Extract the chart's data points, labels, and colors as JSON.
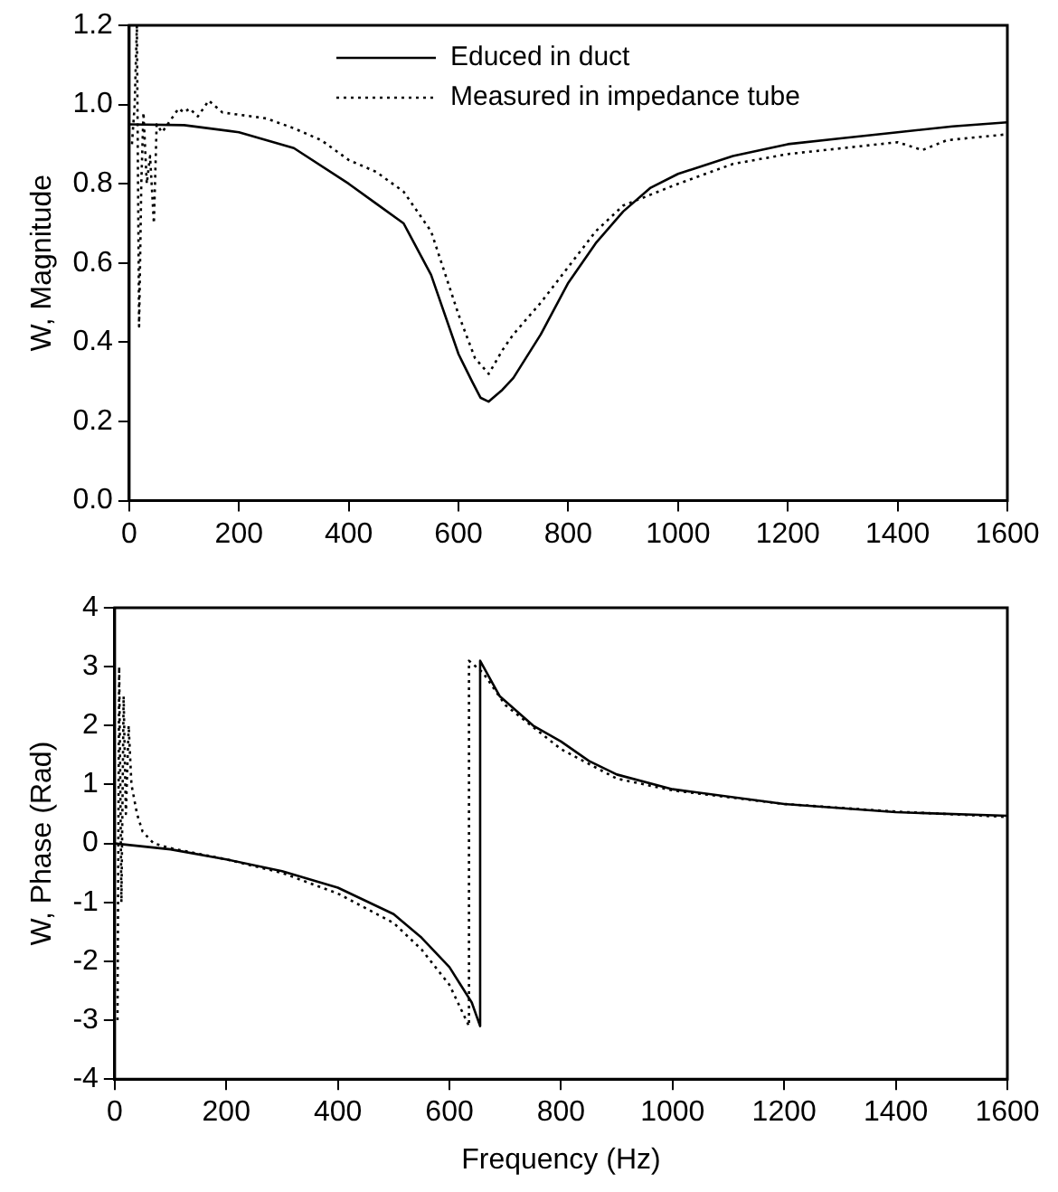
{
  "chart_data": [
    {
      "type": "line",
      "ylabel": "W, Magnitude",
      "legend": "top",
      "grid": false,
      "marker": "none",
      "xlim": [
        0,
        1600
      ],
      "xticks": [
        0,
        200,
        400,
        600,
        800,
        1000,
        1200,
        1400,
        1600
      ],
      "ylim": [
        0,
        1.2
      ],
      "yticks": [
        {
          "value": 0,
          "label": "0.0"
        },
        {
          "value": 0.2,
          "label": "0.2"
        },
        {
          "value": 0.4,
          "label": "0.4"
        },
        {
          "value": 0.6,
          "label": "0.6"
        },
        {
          "value": 0.8,
          "label": "0.8"
        },
        {
          "value": 1,
          "label": "1.0"
        },
        {
          "value": 1.2,
          "label": "1.2"
        }
      ],
      "series": [
        {
          "name": "Educed in duct",
          "color": "#000000",
          "line_style": "solid",
          "x": [
            0,
            100,
            200,
            300,
            400,
            450,
            500,
            550,
            600,
            625,
            640,
            655,
            680,
            700,
            750,
            800,
            850,
            900,
            950,
            1000,
            1100,
            1200,
            1300,
            1400,
            1500,
            1600
          ],
          "values": [
            0.95,
            0.948,
            0.93,
            0.89,
            0.8,
            0.75,
            0.7,
            0.57,
            0.37,
            0.3,
            0.26,
            0.25,
            0.28,
            0.31,
            0.42,
            0.55,
            0.65,
            0.73,
            0.79,
            0.825,
            0.87,
            0.9,
            0.915,
            0.93,
            0.945,
            0.955
          ]
        },
        {
          "name": "Measured in impedance tube",
          "color": "#000000",
          "line_style": "dotted",
          "x": [
            5,
            10,
            14,
            18,
            22,
            26,
            32,
            38,
            45,
            50,
            60,
            75,
            90,
            100,
            110,
            125,
            145,
            170,
            250,
            300,
            350,
            400,
            450,
            500,
            550,
            600,
            630,
            655,
            680,
            700,
            750,
            800,
            850,
            900,
            1000,
            1100,
            1200,
            1300,
            1400,
            1445,
            1490,
            1600
          ],
          "values": [
            0.9,
            1.0,
            1.2,
            0.44,
            0.8,
            0.98,
            0.8,
            0.87,
            0.7,
            0.95,
            0.93,
            0.96,
            0.99,
            0.98,
            0.99,
            0.97,
            1.01,
            0.98,
            0.965,
            0.94,
            0.91,
            0.86,
            0.83,
            0.78,
            0.68,
            0.47,
            0.36,
            0.32,
            0.38,
            0.42,
            0.5,
            0.59,
            0.68,
            0.745,
            0.8,
            0.85,
            0.875,
            0.89,
            0.905,
            0.885,
            0.91,
            0.925
          ]
        }
      ]
    },
    {
      "type": "line",
      "xlabel": "Frequency (Hz)",
      "ylabel": "W, Phase (Rad)",
      "grid": false,
      "marker": "none",
      "xlim": [
        0,
        1600
      ],
      "xticks": [
        0,
        200,
        400,
        600,
        800,
        1000,
        1200,
        1400,
        1600
      ],
      "ylim": [
        -4,
        4
      ],
      "yticks": [
        -4,
        -3,
        -2,
        -1,
        0,
        1,
        2,
        3,
        4
      ],
      "series": [
        {
          "color": "#000000",
          "line_style": "solid",
          "x": [
            0,
            100,
            200,
            300,
            400,
            500,
            550,
            600,
            640,
            655,
            655,
            690,
            750,
            800,
            850,
            900,
            1000,
            1200,
            1400,
            1600
          ],
          "values": [
            0,
            -0.1,
            -0.27,
            -0.47,
            -0.75,
            -1.2,
            -1.6,
            -2.1,
            -2.7,
            -3.1,
            3.1,
            2.5,
            2.0,
            1.73,
            1.4,
            1.17,
            0.92,
            0.67,
            0.53,
            0.47
          ]
        },
        {
          "color": "#000000",
          "line_style": "dotted",
          "x": [
            5,
            8,
            12,
            16,
            20,
            25,
            30,
            40,
            50,
            70,
            100,
            200,
            300,
            400,
            500,
            550,
            600,
            625,
            635,
            635,
            660,
            700,
            800,
            900,
            1000,
            1200,
            1400,
            1600
          ],
          "values": [
            -3,
            3,
            -1,
            2.5,
            0.5,
            2,
            1,
            0.5,
            0.2,
            0,
            -0.08,
            -0.27,
            -0.5,
            -0.85,
            -1.35,
            -1.8,
            -2.4,
            -2.9,
            -3.1,
            3.1,
            2.9,
            2.35,
            1.6,
            1.1,
            0.9,
            0.67,
            0.54,
            0.45
          ]
        }
      ]
    }
  ]
}
